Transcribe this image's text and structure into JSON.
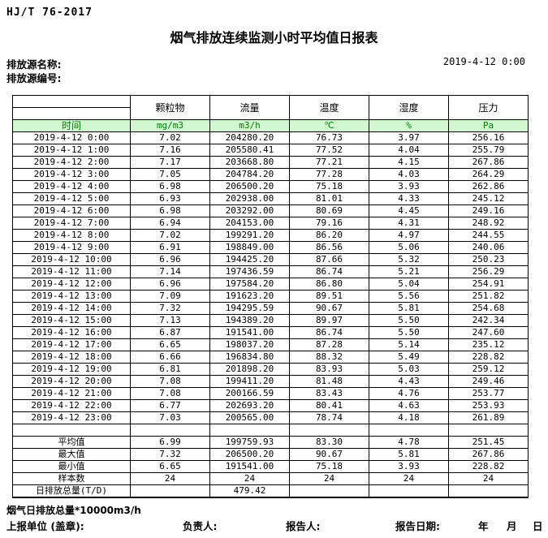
{
  "header": {
    "standard": "HJ/T  76-2017",
    "title": "烟气排放连续监测小时平均值日报表",
    "source_name_label": "排放源名称:",
    "source_id_label": "排放源编号:",
    "datetime": "2019-4-12 0:00"
  },
  "table": {
    "time_label": "时间",
    "columns": [
      "颗粒物",
      "流量",
      "温度",
      "湿度",
      "压力"
    ],
    "units": [
      "mg/m3",
      "m3/h",
      "℃",
      "%",
      "Pa"
    ],
    "rows": [
      {
        "time": "2019-4-12 0:00",
        "values": [
          "7.02",
          "204280.20",
          "76.73",
          "3.97",
          "256.16"
        ]
      },
      {
        "time": "2019-4-12 1:00",
        "values": [
          "7.16",
          "205580.41",
          "77.52",
          "4.04",
          "255.79"
        ]
      },
      {
        "time": "2019-4-12 2:00",
        "values": [
          "7.17",
          "203668.80",
          "77.21",
          "4.15",
          "267.86"
        ]
      },
      {
        "time": "2019-4-12 3:00",
        "values": [
          "7.05",
          "204784.20",
          "77.28",
          "4.03",
          "264.29"
        ]
      },
      {
        "time": "2019-4-12 4:00",
        "values": [
          "6.98",
          "206500.20",
          "75.18",
          "3.93",
          "262.86"
        ]
      },
      {
        "time": "2019-4-12 5:00",
        "values": [
          "6.93",
          "202938.00",
          "81.01",
          "4.33",
          "245.12"
        ]
      },
      {
        "time": "2019-4-12 6:00",
        "values": [
          "6.98",
          "203292.00",
          "80.69",
          "4.45",
          "249.16"
        ]
      },
      {
        "time": "2019-4-12 7:00",
        "values": [
          "6.94",
          "204153.00",
          "79.16",
          "4.31",
          "248.92"
        ]
      },
      {
        "time": "2019-4-12 8:00",
        "values": [
          "7.02",
          "199291.20",
          "86.20",
          "4.97",
          "244.55"
        ]
      },
      {
        "time": "2019-4-12 9:00",
        "values": [
          "6.91",
          "198849.00",
          "86.56",
          "5.06",
          "240.06"
        ]
      },
      {
        "time": "2019-4-12 10:00",
        "values": [
          "6.96",
          "194425.20",
          "87.66",
          "5.32",
          "250.23"
        ]
      },
      {
        "time": "2019-4-12 11:00",
        "values": [
          "7.14",
          "197436.59",
          "86.74",
          "5.21",
          "256.29"
        ]
      },
      {
        "time": "2019-4-12 12:00",
        "values": [
          "6.96",
          "197584.20",
          "86.80",
          "5.04",
          "254.91"
        ]
      },
      {
        "time": "2019-4-12 13:00",
        "values": [
          "7.09",
          "191623.20",
          "89.51",
          "5.56",
          "251.82"
        ]
      },
      {
        "time": "2019-4-12 14:00",
        "values": [
          "7.32",
          "194295.59",
          "90.67",
          "5.81",
          "254.68"
        ]
      },
      {
        "time": "2019-4-12 15:00",
        "values": [
          "7.13",
          "194389.20",
          "89.97",
          "5.50",
          "242.34"
        ]
      },
      {
        "time": "2019-4-12 16:00",
        "values": [
          "6.87",
          "191541.00",
          "86.74",
          "5.50",
          "247.60"
        ]
      },
      {
        "time": "2019-4-12 17:00",
        "values": [
          "6.65",
          "198037.20",
          "87.28",
          "5.14",
          "235.12"
        ]
      },
      {
        "time": "2019-4-12 18:00",
        "values": [
          "6.66",
          "196834.80",
          "88.32",
          "5.49",
          "228.82"
        ]
      },
      {
        "time": "2019-4-12 19:00",
        "values": [
          "6.81",
          "201898.20",
          "83.93",
          "5.03",
          "259.12"
        ]
      },
      {
        "time": "2019-4-12 20:00",
        "values": [
          "7.08",
          "199411.20",
          "81.48",
          "4.43",
          "249.46"
        ]
      },
      {
        "time": "2019-4-12 21:00",
        "values": [
          "7.08",
          "200166.59",
          "83.43",
          "4.76",
          "253.77"
        ]
      },
      {
        "time": "2019-4-12 22:00",
        "values": [
          "6.77",
          "202693.20",
          "80.41",
          "4.63",
          "253.93"
        ]
      },
      {
        "time": "2019-4-12 23:00",
        "values": [
          "7.03",
          "200565.00",
          "78.74",
          "4.18",
          "261.89"
        ]
      }
    ],
    "spacer": {
      "label": "",
      "values": [
        "",
        "",
        "",
        "",
        ""
      ]
    },
    "summary": [
      {
        "label": "平均值",
        "values": [
          "6.99",
          "199759.93",
          "83.30",
          "4.78",
          "251.45"
        ]
      },
      {
        "label": "最大值",
        "values": [
          "7.32",
          "206500.20",
          "90.67",
          "5.81",
          "267.86"
        ]
      },
      {
        "label": "最小值",
        "values": [
          "6.65",
          "191541.00",
          "75.18",
          "3.93",
          "228.82"
        ]
      },
      {
        "label": "样本数",
        "values": [
          "24",
          "24",
          "24",
          "24",
          "24"
        ]
      },
      {
        "label": "日排放总量(T/D)",
        "values": [
          "",
          "479.42",
          "",
          "",
          ""
        ]
      }
    ]
  },
  "footer": {
    "total_note": "烟气日排放总量*10000m3/h",
    "unit_label": "上报单位 (盖章):",
    "responsible_label": "负责人:",
    "reporter_label": "报告人:",
    "report_date_label": "报告日期:",
    "year_label": "年",
    "month_label": "月",
    "day_label": "日"
  },
  "colors": {
    "header_row_background": "#d2f8d2",
    "header_row_text": "#008000",
    "table_border": "#000000"
  }
}
